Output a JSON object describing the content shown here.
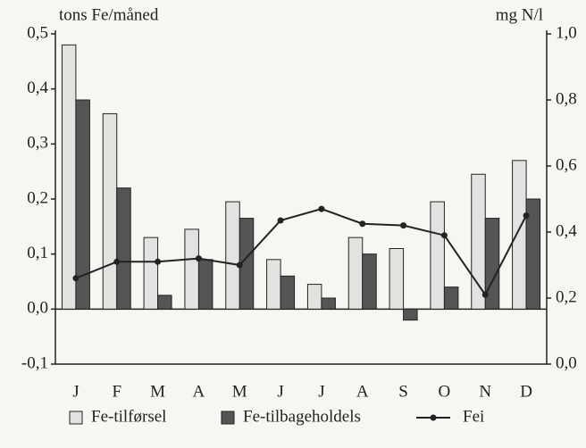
{
  "chart_data": {
    "type": "bar",
    "y_label": "tons Fe/måned",
    "y2_label": "mg N/l",
    "categories": [
      "J",
      "F",
      "M",
      "A",
      "M",
      "J",
      "J",
      "A",
      "S",
      "O",
      "N",
      "D"
    ],
    "series": [
      {
        "name": "Fe-tilførsel",
        "type": "bar",
        "color": "#e2e2e0",
        "values": [
          0.48,
          0.355,
          0.13,
          0.145,
          0.195,
          0.09,
          0.045,
          0.13,
          0.11,
          0.195,
          0.245,
          0.27
        ]
      },
      {
        "name": "Fe-tilbageholdels",
        "type": "bar",
        "color": "#555555",
        "values": [
          0.38,
          0.22,
          0.025,
          0.09,
          0.165,
          0.06,
          0.02,
          0.1,
          -0.02,
          0.04,
          0.165,
          0.2
        ]
      },
      {
        "name": "Fei",
        "type": "line",
        "axis": "y2",
        "color": "#222222",
        "values": [
          0.26,
          0.31,
          0.31,
          0.32,
          0.3,
          0.435,
          0.47,
          0.425,
          0.42,
          0.39,
          0.21,
          0.45
        ]
      }
    ],
    "ylim": [
      -0.1,
      0.5
    ],
    "yticks": [
      {
        "value": -0.1,
        "label": "-0,1"
      },
      {
        "value": 0,
        "label": "0,0"
      },
      {
        "value": 0.1,
        "label": "0,1"
      },
      {
        "value": 0.2,
        "label": "0,2"
      },
      {
        "value": 0.3,
        "label": "0,3"
      },
      {
        "value": 0.4,
        "label": "0,4"
      },
      {
        "value": 0.5,
        "label": "0,5"
      }
    ],
    "y2lim": [
      0,
      1
    ],
    "y2ticks": [
      {
        "value": 0,
        "label": "0,0"
      },
      {
        "value": 0.2,
        "label": "0,2"
      },
      {
        "value": 0.4,
        "label": "0,4"
      },
      {
        "value": 0.6,
        "label": "0,6"
      },
      {
        "value": 0.8,
        "label": "0,8"
      },
      {
        "value": 1,
        "label": "1,0"
      }
    ]
  }
}
